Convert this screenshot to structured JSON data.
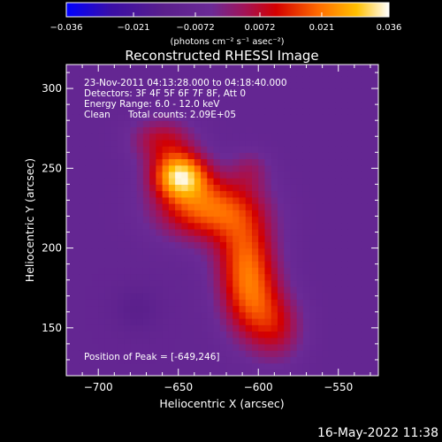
{
  "chart_data": {
    "type": "heatmap",
    "title": "Reconstructed RHESSI Image",
    "xlabel": "Heliocentric X (arcsec)",
    "ylabel": "Heliocentric Y (arcsec)",
    "xlim": [
      -720,
      -525
    ],
    "ylim": [
      120,
      315
    ],
    "xticks": [
      -700,
      -650,
      -600,
      -550
    ],
    "xtick_labels": [
      "−700",
      "−650",
      "−600",
      "−550"
    ],
    "yticks": [
      150,
      200,
      250,
      300
    ],
    "ytick_labels": [
      "150",
      "200",
      "250",
      "300"
    ],
    "colorbar": {
      "range": [
        -0.036,
        0.036
      ],
      "ticks": [
        -0.036,
        -0.021,
        -0.0072,
        0.0072,
        0.021,
        0.036
      ],
      "tick_labels": [
        "−0.036",
        "−0.021",
        "−0.0072",
        "0.0072",
        "0.021",
        "0.036"
      ],
      "unit_label": "(photons cm⁻² s⁻¹ asec⁻²)"
    },
    "colormap": [
      "#0000ff",
      "#3b0fa6",
      "#5a1f8c",
      "#6b2a96",
      "#a0145a",
      "#d40000",
      "#ff6a00",
      "#ffc000",
      "#ffffff"
    ],
    "peak": {
      "x": -649,
      "y": 246
    },
    "sources": [
      {
        "x": -649,
        "y": 246,
        "sx": 12,
        "sy": 10,
        "amp": 0.036
      },
      {
        "x": -632,
        "y": 225,
        "sx": 22,
        "sy": 14,
        "amp": 0.027
      },
      {
        "x": -608,
        "y": 195,
        "sx": 13,
        "sy": 20,
        "amp": 0.022
      },
      {
        "x": -604,
        "y": 166,
        "sx": 13,
        "sy": 18,
        "amp": 0.018
      },
      {
        "x": -660,
        "y": 268,
        "sx": 14,
        "sy": 10,
        "amp": 0.015
      },
      {
        "x": -588,
        "y": 150,
        "sx": 12,
        "sy": 15,
        "amp": 0.013
      },
      {
        "x": -605,
        "y": 250,
        "sx": 9,
        "sy": 9,
        "amp": 0.008
      }
    ],
    "background": -0.008
  },
  "info": {
    "line1": "23-Nov-2011 04:13:28.000 to 04:18:40.000",
    "line2": "Detectors: 3F 4F 5F 6F 7F 8F, Att 0",
    "line3": "Energy Range: 6.0 - 12.0 keV",
    "line4_method": "Clean",
    "line4_counts": "Total counts: 2.09E+05",
    "peak_label": "Position of Peak = [-649,246]"
  },
  "footer": {
    "timestamp": "16-May-2022 11:38"
  }
}
